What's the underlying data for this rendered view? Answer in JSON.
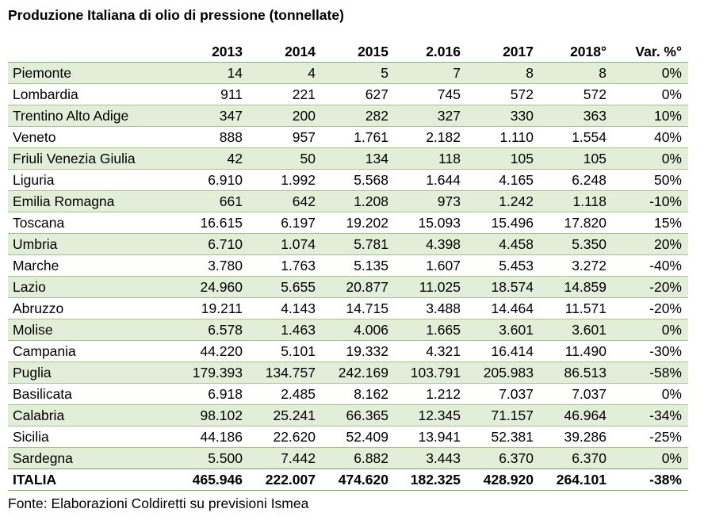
{
  "title": "Produzione Italiana di olio di pressione (tonnellate)",
  "table": {
    "headers": [
      "",
      "2013",
      "2014",
      "2015",
      "2.016",
      "2017",
      "2018°",
      "Var. %°"
    ],
    "rows": [
      {
        "region": "Piemonte",
        "values": [
          "14",
          "4",
          "5",
          "7",
          "8",
          "8",
          "0%"
        ]
      },
      {
        "region": "Lombardia",
        "values": [
          "911",
          "221",
          "627",
          "745",
          "572",
          "572",
          "0%"
        ]
      },
      {
        "region": "Trentino Alto Adige",
        "values": [
          "347",
          "200",
          "282",
          "327",
          "330",
          "363",
          "10%"
        ]
      },
      {
        "region": "Veneto",
        "values": [
          "888",
          "957",
          "1.761",
          "2.182",
          "1.110",
          "1.554",
          "40%"
        ]
      },
      {
        "region": "Friuli Venezia Giulia",
        "values": [
          "42",
          "50",
          "134",
          "118",
          "105",
          "105",
          "0%"
        ]
      },
      {
        "region": "Liguria",
        "values": [
          "6.910",
          "1.992",
          "5.568",
          "1.644",
          "4.165",
          "6.248",
          "50%"
        ]
      },
      {
        "region": "Emilia Romagna",
        "values": [
          "661",
          "642",
          "1.208",
          "973",
          "1.242",
          "1.118",
          "-10%"
        ]
      },
      {
        "region": "Toscana",
        "values": [
          "16.615",
          "6.197",
          "19.202",
          "15.093",
          "15.496",
          "17.820",
          "15%"
        ]
      },
      {
        "region": "Umbria",
        "values": [
          "6.710",
          "1.074",
          "5.781",
          "4.398",
          "4.458",
          "5.350",
          "20%"
        ]
      },
      {
        "region": "Marche",
        "values": [
          "3.780",
          "1.763",
          "5.135",
          "1.607",
          "5.453",
          "3.272",
          "-40%"
        ]
      },
      {
        "region": "Lazio",
        "values": [
          "24.960",
          "5.655",
          "20.877",
          "11.025",
          "18.574",
          "14.859",
          "-20%"
        ]
      },
      {
        "region": "Abruzzo",
        "values": [
          "19.211",
          "4.143",
          "14.715",
          "3.488",
          "14.464",
          "11.571",
          "-20%"
        ]
      },
      {
        "region": "Molise",
        "values": [
          "6.578",
          "1.463",
          "4.006",
          "1.665",
          "3.601",
          "3.601",
          "0%"
        ]
      },
      {
        "region": "Campania",
        "values": [
          "44.220",
          "5.101",
          "19.332",
          "4.321",
          "16.414",
          "11.490",
          "-30%"
        ]
      },
      {
        "region": "Puglia",
        "values": [
          "179.393",
          "134.757",
          "242.169",
          "103.791",
          "205.983",
          "86.513",
          "-58%"
        ]
      },
      {
        "region": "Basilicata",
        "values": [
          "6.918",
          "2.485",
          "8.162",
          "1.212",
          "7.037",
          "7.037",
          "0%"
        ]
      },
      {
        "region": "Calabria",
        "values": [
          "98.102",
          "25.241",
          "66.365",
          "12.345",
          "71.157",
          "46.964",
          "-34%"
        ]
      },
      {
        "region": "Sicilia",
        "values": [
          "44.186",
          "22.620",
          "52.409",
          "13.941",
          "52.381",
          "39.286",
          "-25%"
        ]
      },
      {
        "region": "Sardegna",
        "values": [
          "5.500",
          "7.442",
          "6.882",
          "3.443",
          "6.370",
          "6.370",
          "0%"
        ]
      }
    ],
    "total": {
      "region": "ITALIA",
      "values": [
        "465.946",
        "222.007",
        "474.620",
        "182.325",
        "428.920",
        "264.101",
        "-38%"
      ]
    }
  },
  "source": "Fonte: Elaborazioni Coldiretti su previsioni Ismea",
  "colors": {
    "row_band": "#e3eed8",
    "rule": "#a9c08f"
  }
}
